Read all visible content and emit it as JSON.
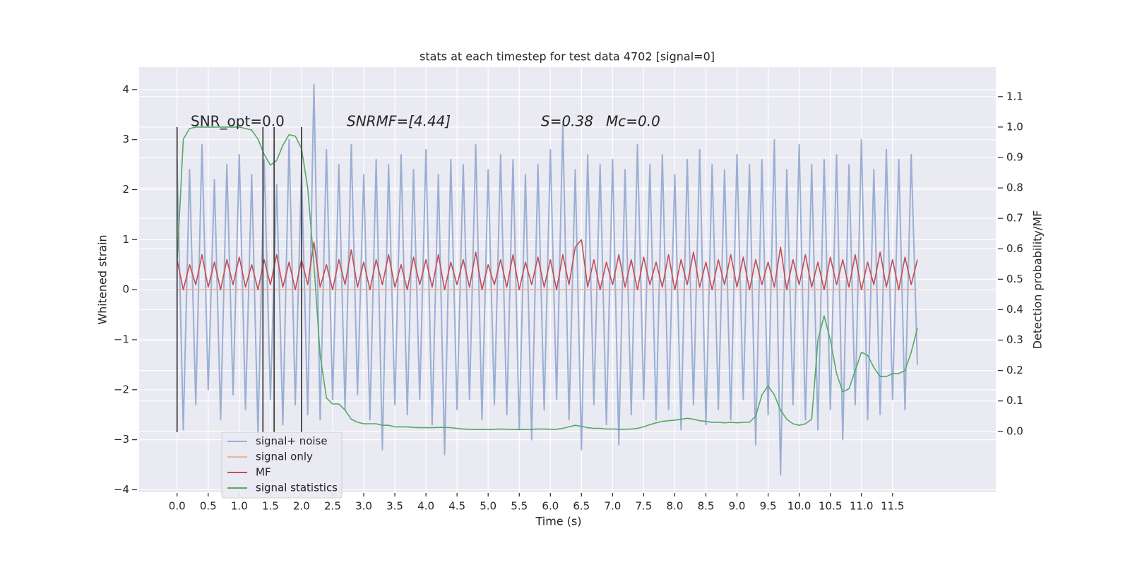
{
  "chart_data": {
    "type": "line",
    "title": "stats at each timestep for test data 4702 [signal=0]",
    "xlabel": "Time (s)",
    "ylabel": "Whitened strain",
    "y2label": "Detection probability/MF",
    "annotations": [
      "SNR_opt=0.0",
      "SNRMF=[4.44]",
      "S=0.38",
      "Mc=0.0"
    ],
    "grid": true,
    "legend": "lower left",
    "xlim": [
      -0.61,
      13.16
    ],
    "ylim": [
      -4.05,
      4.45
    ],
    "y2lim": [
      -0.2,
      1.197
    ],
    "xticks": [
      {
        "value": 0,
        "label": "0.0"
      },
      0.5,
      {
        "value": 1,
        "label": "1.0"
      },
      1.5,
      {
        "value": 2,
        "label": "2.0"
      },
      2.5,
      {
        "value": 3,
        "label": "3.0"
      },
      3.5,
      {
        "value": 4,
        "label": "4.0"
      },
      4.5,
      {
        "value": 5,
        "label": "5.0"
      },
      5.5,
      {
        "value": 6,
        "label": "6.0"
      },
      6.5,
      {
        "value": 7,
        "label": "7.0"
      },
      7.5,
      {
        "value": 8,
        "label": "8.0"
      },
      8.5,
      {
        "value": 9,
        "label": "9.0"
      },
      9.5,
      {
        "value": 10,
        "label": "10.0"
      },
      10.5,
      {
        "value": 11,
        "label": "11.0"
      },
      11.5
    ],
    "yticks": [
      {
        "value": -4,
        "label": "−4"
      },
      {
        "value": -3,
        "label": "−3"
      },
      {
        "value": -2,
        "label": "−2"
      },
      {
        "value": -1,
        "label": "−1"
      },
      0,
      1,
      2,
      3,
      4
    ],
    "y2ticks": [
      {
        "value": 0,
        "label": "0.0"
      },
      0.1,
      0.2,
      0.3,
      0.4,
      0.5,
      0.6,
      0.7,
      0.8,
      0.9,
      {
        "value": 1,
        "label": "1.0"
      },
      1.1
    ],
    "vlines": {
      "x": [
        0.0,
        1.38,
        1.56,
        2.0
      ],
      "ymin": -2.85,
      "ymax": 3.25,
      "color": "#444444"
    },
    "x": [
      0,
      0.1,
      0.2,
      0.3,
      0.4,
      0.5,
      0.6,
      0.7,
      0.8,
      0.9,
      1,
      1.1,
      1.2,
      1.3,
      1.4,
      1.5,
      1.6,
      1.7,
      1.8,
      1.9,
      2,
      2.1,
      2.2,
      2.3,
      2.4,
      2.5,
      2.6,
      2.7,
      2.8,
      2.9,
      3,
      3.1,
      3.2,
      3.3,
      3.4,
      3.5,
      3.6,
      3.7,
      3.8,
      3.9,
      4,
      4.1,
      4.2,
      4.3,
      4.4,
      4.5,
      4.6,
      4.7,
      4.8,
      4.9,
      5,
      5.1,
      5.2,
      5.3,
      5.4,
      5.5,
      5.6,
      5.7,
      5.8,
      5.9,
      6,
      6.1,
      6.2,
      6.3,
      6.4,
      6.5,
      6.6,
      6.7,
      6.8,
      6.9,
      7,
      7.1,
      7.2,
      7.3,
      7.4,
      7.5,
      7.6,
      7.7,
      7.8,
      7.9,
      8,
      8.1,
      8.2,
      8.3,
      8.4,
      8.5,
      8.6,
      8.7,
      8.8,
      8.9,
      9,
      9.1,
      9.2,
      9.3,
      9.4,
      9.5,
      9.6,
      9.7,
      9.8,
      9.9,
      10,
      10.1,
      10.2,
      10.3,
      10.4,
      10.5,
      10.6,
      10.7,
      10.8,
      10.9,
      11,
      11.1,
      11.2,
      11.3,
      11.4,
      11.5,
      11.6,
      11.7,
      11.8,
      11.9
    ],
    "series": [
      {
        "name": "signal+ noise",
        "color": "#9aafd3",
        "values": [
          2.6,
          -2.8,
          2.4,
          -2.3,
          2.9,
          -2.0,
          2.2,
          -2.6,
          2.5,
          -2.1,
          2.7,
          -2.4,
          2.3,
          -2.9,
          2.6,
          -2.2,
          2.1,
          -2.7,
          3.0,
          -2.3,
          2.4,
          -2.5,
          4.1,
          -2.6,
          2.8,
          -2.2,
          2.5,
          -2.4,
          2.9,
          -2.1,
          2.3,
          -2.6,
          2.6,
          -3.2,
          2.5,
          -2.3,
          2.7,
          -2.5,
          2.4,
          -2.2,
          2.8,
          -2.7,
          2.3,
          -3.3,
          2.6,
          -2.4,
          2.5,
          -2.2,
          2.9,
          -2.6,
          2.4,
          -2.3,
          2.7,
          -2.5,
          2.6,
          -2.8,
          2.3,
          -3.0,
          2.5,
          -2.4,
          2.8,
          -2.2,
          3.3,
          -2.6,
          2.4,
          -3.2,
          2.7,
          -2.3,
          2.5,
          -2.7,
          2.6,
          -3.1,
          2.4,
          -2.5,
          2.9,
          -2.2,
          2.5,
          -2.6,
          2.7,
          -2.4,
          2.3,
          -2.8,
          2.6,
          -2.3,
          2.8,
          -2.7,
          2.5,
          -2.4,
          2.4,
          -2.6,
          2.7,
          -2.2,
          2.5,
          -3.1,
          2.6,
          -2.5,
          3.0,
          -3.7,
          2.4,
          -2.3,
          2.9,
          -2.6,
          2.5,
          -2.8,
          2.6,
          -2.4,
          2.7,
          -3.0,
          2.5,
          -2.3,
          3.0,
          -2.6,
          2.4,
          -2.5,
          2.8,
          -2.2,
          2.6,
          -2.4,
          2.7,
          -1.5
        ]
      },
      {
        "name": "signal only",
        "color": "#e9b59a",
        "values": [
          0,
          0,
          0,
          0,
          0,
          0,
          0,
          0,
          0,
          0,
          0,
          0,
          0,
          0,
          0,
          0,
          0,
          0,
          0,
          0,
          0,
          0,
          0,
          0,
          0,
          0,
          0,
          0,
          0,
          0,
          0,
          0,
          0,
          0,
          0,
          0,
          0,
          0,
          0,
          0,
          0,
          0,
          0,
          0,
          0,
          0,
          0,
          0,
          0,
          0,
          0,
          0,
          0,
          0,
          0,
          0,
          0,
          0,
          0,
          0,
          0,
          0,
          0,
          0,
          0,
          0,
          0,
          0,
          0,
          0,
          0,
          0,
          0,
          0,
          0,
          0,
          0,
          0,
          0,
          0,
          0,
          0,
          0,
          0,
          0,
          0,
          0,
          0,
          0,
          0,
          0,
          0,
          0,
          0,
          0,
          0,
          0,
          0,
          0,
          0,
          0,
          0,
          0,
          0,
          0,
          0,
          0,
          0,
          0,
          0,
          0,
          0,
          0,
          0,
          0,
          0,
          0,
          0,
          0,
          0
        ]
      },
      {
        "name": "MF",
        "color": "#c44e52",
        "values": [
          0.6,
          0.0,
          0.5,
          0.1,
          0.7,
          0.05,
          0.55,
          0.0,
          0.6,
          0.1,
          0.65,
          0.05,
          0.5,
          0.0,
          0.6,
          0.1,
          0.7,
          0.05,
          0.55,
          0.0,
          0.6,
          0.1,
          0.95,
          0.05,
          0.5,
          0.0,
          0.6,
          0.1,
          0.8,
          0.05,
          0.55,
          0.0,
          0.6,
          0.1,
          0.7,
          0.05,
          0.5,
          0.0,
          0.65,
          0.1,
          0.6,
          0.05,
          0.7,
          0.0,
          0.55,
          0.1,
          0.6,
          0.05,
          0.75,
          0.0,
          0.5,
          0.1,
          0.6,
          0.05,
          0.7,
          0.0,
          0.55,
          0.1,
          0.65,
          0.05,
          0.6,
          0.0,
          0.7,
          0.1,
          0.85,
          1.0,
          0.05,
          0.6,
          0.0,
          0.55,
          0.1,
          0.7,
          0.05,
          0.6,
          0.0,
          0.65,
          0.1,
          0.55,
          0.05,
          0.7,
          0.0,
          0.6,
          0.1,
          0.75,
          0.05,
          0.55,
          0.0,
          0.6,
          0.1,
          0.7,
          0.05,
          0.65,
          0.0,
          0.6,
          0.1,
          0.55,
          0.05,
          0.85,
          0.0,
          0.6,
          0.1,
          0.7,
          0.05,
          0.55,
          0.0,
          0.65,
          0.1,
          0.6,
          0.05,
          0.7,
          0.0,
          0.55,
          0.1,
          0.75,
          0.05,
          0.6,
          0.0,
          0.65,
          0.1,
          0.6
        ]
      },
      {
        "name": "signal statistics",
        "color": "#55a868",
        "axis": "y2",
        "values": [
          0.55,
          0.96,
          0.995,
          1.0,
          1.0,
          1.0,
          1.0,
          1.0,
          1.0,
          1.0,
          1.0,
          0.995,
          0.99,
          0.96,
          0.91,
          0.875,
          0.89,
          0.94,
          0.975,
          0.97,
          0.93,
          0.8,
          0.55,
          0.25,
          0.11,
          0.09,
          0.09,
          0.07,
          0.04,
          0.03,
          0.025,
          0.025,
          0.025,
          0.02,
          0.02,
          0.015,
          0.015,
          0.015,
          0.013,
          0.012,
          0.012,
          0.012,
          0.013,
          0.013,
          0.012,
          0.01,
          0.008,
          0.007,
          0.006,
          0.006,
          0.006,
          0.007,
          0.008,
          0.007,
          0.006,
          0.006,
          0.006,
          0.007,
          0.008,
          0.008,
          0.007,
          0.007,
          0.01,
          0.015,
          0.02,
          0.017,
          0.012,
          0.01,
          0.01,
          0.008,
          0.008,
          0.007,
          0.007,
          0.008,
          0.01,
          0.015,
          0.022,
          0.028,
          0.033,
          0.035,
          0.037,
          0.04,
          0.043,
          0.04,
          0.035,
          0.033,
          0.03,
          0.03,
          0.028,
          0.03,
          0.028,
          0.03,
          0.03,
          0.05,
          0.12,
          0.15,
          0.12,
          0.07,
          0.04,
          0.025,
          0.02,
          0.025,
          0.04,
          0.3,
          0.38,
          0.3,
          0.19,
          0.13,
          0.14,
          0.2,
          0.26,
          0.25,
          0.21,
          0.18,
          0.18,
          0.19,
          0.19,
          0.2,
          0.26,
          0.34
        ]
      }
    ]
  }
}
